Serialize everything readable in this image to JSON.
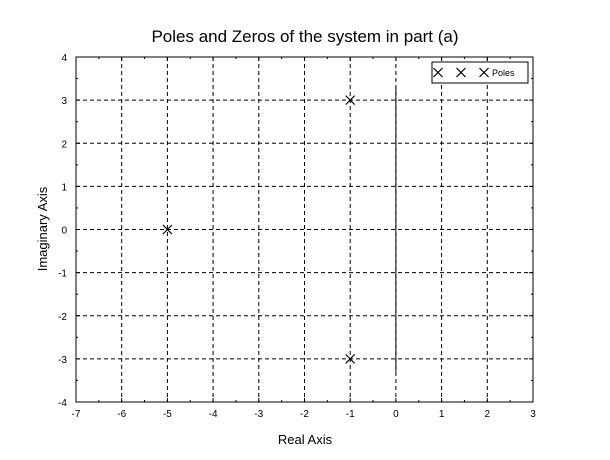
{
  "chart_data": {
    "type": "scatter",
    "title": "Poles and Zeros of the system in part (a)",
    "xlabel": "Real Axis",
    "ylabel": "Imaginary Axis",
    "xlim": [
      -7,
      3
    ],
    "ylim": [
      -4,
      4
    ],
    "xticks": [
      -7,
      -6,
      -5,
      -4,
      -3,
      -2,
      -1,
      0,
      1,
      2,
      3
    ],
    "yticks": [
      -4,
      -3,
      -2,
      -1,
      0,
      1,
      2,
      3,
      4
    ],
    "grid": true,
    "grid_style": "dashed",
    "legend_position": "top-right",
    "series": [
      {
        "name": "Poles",
        "marker": "x",
        "x": [
          -5,
          -1,
          -1
        ],
        "y": [
          0,
          3,
          -3
        ]
      }
    ],
    "annotations": [
      {
        "type": "vertical-line",
        "x": 0,
        "y_range": [
          -3.3,
          3.3
        ]
      }
    ]
  }
}
